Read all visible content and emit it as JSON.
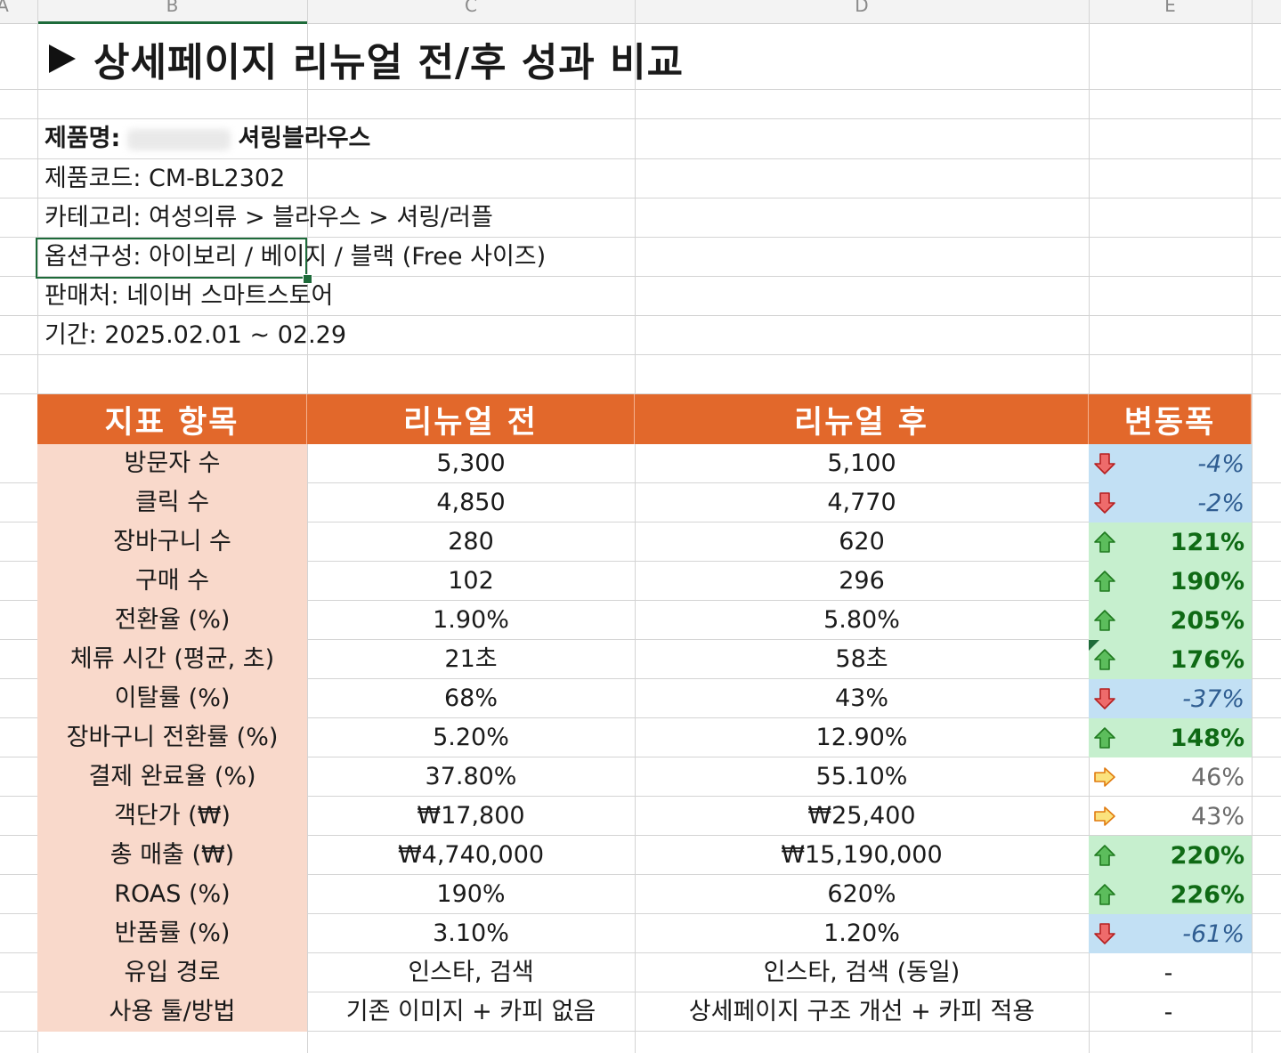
{
  "columns": {
    "a": "A",
    "b": "B",
    "c": "C",
    "d": "D",
    "e": "E"
  },
  "title": "상세페이지 리뉴얼 전/후 성과 비교",
  "info": {
    "product_label": "제품명:",
    "product_name": "셔링블라우스",
    "product_code": "제품코드: CM-BL2302",
    "category": "카테고리: 여성의류 > 블라우스 > 셔링/러플",
    "options": "옵션구성: 아이보리 / 베이지 / 블랙 (Free 사이즈)",
    "seller": "판매처: 네이버 스마트스토어",
    "period": "기간: 2025.02.01 ~ 02.29"
  },
  "table": {
    "headers": [
      "지표 항목",
      "리뉴얼 전",
      "리뉴얼 후",
      "변동폭"
    ],
    "rows": [
      {
        "label": "방문자 수",
        "before": "5,300",
        "after": "5,100",
        "change": "-4%",
        "trend": "down"
      },
      {
        "label": "클릭 수",
        "before": "4,850",
        "after": "4,770",
        "change": "-2%",
        "trend": "down"
      },
      {
        "label": "장바구니 수",
        "before": "280",
        "after": "620",
        "change": "121%",
        "trend": "up"
      },
      {
        "label": "구매 수",
        "before": "102",
        "after": "296",
        "change": "190%",
        "trend": "up"
      },
      {
        "label": "전환율 (%)",
        "before": "1.90%",
        "after": "5.80%",
        "change": "205%",
        "trend": "up"
      },
      {
        "label": "체류 시간 (평균, 초)",
        "before": "21초",
        "after": "58초",
        "change": "176%",
        "trend": "up"
      },
      {
        "label": "이탈률 (%)",
        "before": "68%",
        "after": "43%",
        "change": "-37%",
        "trend": "down"
      },
      {
        "label": "장바구니 전환률 (%)",
        "before": "5.20%",
        "after": "12.90%",
        "change": "148%",
        "trend": "up"
      },
      {
        "label": "결제 완료율 (%)",
        "before": "37.80%",
        "after": "55.10%",
        "change": "46%",
        "trend": "flat"
      },
      {
        "label": "객단가 (₩)",
        "before": "₩17,800",
        "after": "₩25,400",
        "change": "43%",
        "trend": "flat"
      },
      {
        "label": "총 매출 (₩)",
        "before": "₩4,740,000",
        "after": "₩15,190,000",
        "change": "220%",
        "trend": "up"
      },
      {
        "label": "ROAS (%)",
        "before": "190%",
        "after": "620%",
        "change": "226%",
        "trend": "up"
      },
      {
        "label": "반품률 (%)",
        "before": "3.10%",
        "after": "1.20%",
        "change": "-61%",
        "trend": "down"
      },
      {
        "label": "유입 경로",
        "before": "인스타, 검색",
        "after": "인스타, 검색 (동일)",
        "change": "-",
        "trend": "none"
      },
      {
        "label": "사용 툴/방법",
        "before": "기존 이미지 + 카피 없음",
        "after": "상세페이지 구조 개선 + 카피 적용",
        "change": "-",
        "trend": "none"
      }
    ]
  },
  "colors": {
    "header_bg": "#e2682b",
    "label_bg": "#f9d9cb",
    "up_bg": "#c6efce",
    "down_bg": "#c2e0f4",
    "selection": "#1e6b3a"
  }
}
